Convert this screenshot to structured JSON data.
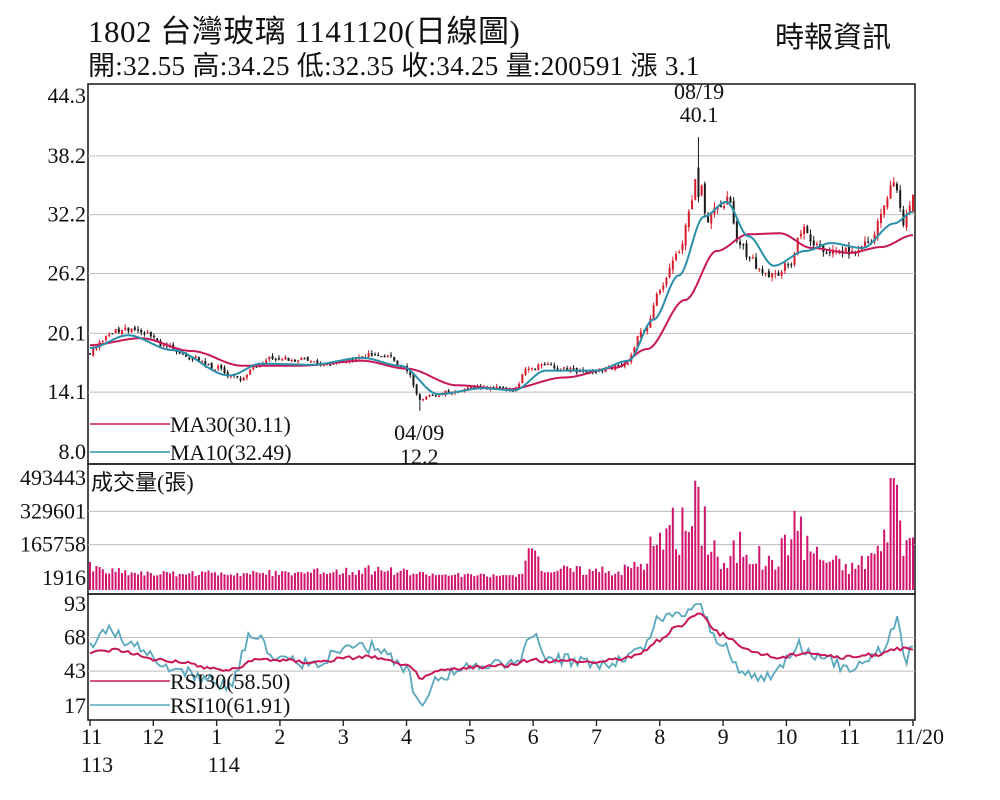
{
  "header": {
    "title": "1802  台灣玻璃 1141120(日線圖)",
    "source": "時報資訊",
    "quote": "開:32.55 高:34.25 低:32.35 收:34.25 量:200591 漲 3.1"
  },
  "colors": {
    "up": "#d81b2c",
    "down": "#1a1a1a",
    "ma30": "#c8185a",
    "ma10": "#2a8fa8",
    "volume": "#d1146e",
    "rsi30": "#c8185a",
    "rsi10": "#5aa8bd",
    "grid": "#bdbdbd"
  },
  "chart_data": [
    {
      "type": "candlestick",
      "panel": "price",
      "y_ticks": [
        "44.3",
        "38.2",
        "32.2",
        "26.2",
        "20.1",
        "14.1",
        "8.0"
      ],
      "ylim": [
        8.0,
        44.3
      ],
      "legend": [
        {
          "label": "MA30(30.11)",
          "series": "ma30"
        },
        {
          "label": "MA10(32.49)",
          "series": "ma10"
        }
      ],
      "annotations": [
        {
          "date": "08/19",
          "value": "40.1",
          "kind": "high"
        },
        {
          "date": "04/09",
          "value": "12.2",
          "kind": "low"
        }
      ],
      "last": {
        "open": 32.55,
        "high": 34.25,
        "low": 32.35,
        "close": 34.25
      },
      "anchors": [
        {
          "month": 11.0,
          "price": 18.2
        },
        {
          "month": 11.3,
          "price": 20.0
        },
        {
          "month": 11.5,
          "price": 20.5
        },
        {
          "month": 11.8,
          "price": 20.3
        },
        {
          "month": 12.2,
          "price": 18.8
        },
        {
          "month": 12.6,
          "price": 17.6
        },
        {
          "month": 13.0,
          "price": 16.6
        },
        {
          "month": 13.35,
          "price": 15.4
        },
        {
          "month": 13.6,
          "price": 16.6
        },
        {
          "month": 13.9,
          "price": 17.6
        },
        {
          "month": 14.3,
          "price": 17.4
        },
        {
          "month": 14.7,
          "price": 17.0
        },
        {
          "month": 15.0,
          "price": 17.3
        },
        {
          "month": 15.3,
          "price": 17.9
        },
        {
          "month": 15.7,
          "price": 17.7
        },
        {
          "month": 16.0,
          "price": 16.4
        },
        {
          "month": 16.2,
          "price": 13.4
        },
        {
          "month": 16.4,
          "price": 13.6
        },
        {
          "month": 16.7,
          "price": 14.2
        },
        {
          "month": 17.2,
          "price": 14.6
        },
        {
          "month": 17.7,
          "price": 14.3
        },
        {
          "month": 17.9,
          "price": 16.4
        },
        {
          "month": 18.2,
          "price": 16.8
        },
        {
          "month": 18.6,
          "price": 16.3
        },
        {
          "month": 19.0,
          "price": 16.2
        },
        {
          "month": 19.45,
          "price": 16.9
        },
        {
          "month": 19.75,
          "price": 20.5
        },
        {
          "month": 20.0,
          "price": 24.5
        },
        {
          "month": 20.3,
          "price": 28.5
        },
        {
          "month": 20.5,
          "price": 33.5
        },
        {
          "month": 20.6,
          "price": 37.8
        },
        {
          "month": 20.75,
          "price": 31.5
        },
        {
          "month": 20.95,
          "price": 33.4
        },
        {
          "month": 21.1,
          "price": 33.6
        },
        {
          "month": 21.2,
          "price": 30.0
        },
        {
          "month": 21.4,
          "price": 28.0
        },
        {
          "month": 21.6,
          "price": 26.5
        },
        {
          "month": 21.8,
          "price": 26.0
        },
        {
          "month": 22.05,
          "price": 27.2
        },
        {
          "month": 22.25,
          "price": 30.6
        },
        {
          "month": 22.5,
          "price": 28.9
        },
        {
          "month": 22.8,
          "price": 28.2
        },
        {
          "month": 23.05,
          "price": 28.6
        },
        {
          "month": 23.35,
          "price": 29.6
        },
        {
          "month": 23.55,
          "price": 33.0
        },
        {
          "month": 23.7,
          "price": 35.8
        },
        {
          "month": 23.85,
          "price": 31.5
        },
        {
          "month": 24.0,
          "price": 34.25
        }
      ],
      "ma10_anchors": [
        {
          "month": 11.0,
          "price": 18.6
        },
        {
          "month": 11.6,
          "price": 19.9
        },
        {
          "month": 12.3,
          "price": 18.4
        },
        {
          "month": 13.2,
          "price": 15.8
        },
        {
          "month": 13.7,
          "price": 17.0
        },
        {
          "month": 14.5,
          "price": 16.9
        },
        {
          "month": 15.3,
          "price": 17.6
        },
        {
          "month": 15.9,
          "price": 16.8
        },
        {
          "month": 16.5,
          "price": 13.9
        },
        {
          "month": 17.2,
          "price": 14.5
        },
        {
          "month": 17.7,
          "price": 14.3
        },
        {
          "month": 18.2,
          "price": 16.3
        },
        {
          "month": 19.0,
          "price": 16.3
        },
        {
          "month": 19.5,
          "price": 17.3
        },
        {
          "month": 19.9,
          "price": 21.5
        },
        {
          "month": 20.3,
          "price": 26.0
        },
        {
          "month": 20.7,
          "price": 32.0
        },
        {
          "month": 21.05,
          "price": 33.5
        },
        {
          "month": 21.4,
          "price": 30.0
        },
        {
          "month": 21.8,
          "price": 27.0
        },
        {
          "month": 22.3,
          "price": 28.5
        },
        {
          "month": 22.7,
          "price": 29.3
        },
        {
          "month": 23.2,
          "price": 28.8
        },
        {
          "month": 23.7,
          "price": 31.3
        },
        {
          "month": 24.0,
          "price": 32.49
        }
      ],
      "ma30_anchors": [
        {
          "month": 11.0,
          "price": 18.9
        },
        {
          "month": 11.8,
          "price": 19.6
        },
        {
          "month": 12.6,
          "price": 18.3
        },
        {
          "month": 13.4,
          "price": 16.8
        },
        {
          "month": 14.3,
          "price": 16.8
        },
        {
          "month": 15.3,
          "price": 17.3
        },
        {
          "month": 16.0,
          "price": 16.5
        },
        {
          "month": 16.8,
          "price": 14.8
        },
        {
          "month": 17.6,
          "price": 14.4
        },
        {
          "month": 18.5,
          "price": 15.6
        },
        {
          "month": 19.3,
          "price": 16.6
        },
        {
          "month": 19.8,
          "price": 18.5
        },
        {
          "month": 20.4,
          "price": 23.5
        },
        {
          "month": 20.9,
          "price": 28.5
        },
        {
          "month": 21.4,
          "price": 30.2
        },
        {
          "month": 21.9,
          "price": 30.3
        },
        {
          "month": 22.4,
          "price": 28.8
        },
        {
          "month": 23.0,
          "price": 28.3
        },
        {
          "month": 23.5,
          "price": 28.9
        },
        {
          "month": 24.0,
          "price": 30.11
        }
      ]
    },
    {
      "type": "bar",
      "panel": "volume",
      "y_ticks": [
        "493443",
        "329601",
        "165758",
        "1916"
      ],
      "ylim": [
        1916,
        493443
      ],
      "legend": [
        {
          "label": "成交量(張)"
        }
      ],
      "last_value": 200591,
      "anchors": [
        {
          "month": 11.0,
          "volume": 60000
        },
        {
          "month": 11.3,
          "volume": 40000
        },
        {
          "month": 12.0,
          "volume": 25000
        },
        {
          "month": 14.0,
          "volume": 30000
        },
        {
          "month": 15.5,
          "volume": 45000
        },
        {
          "month": 16.5,
          "volume": 20000
        },
        {
          "month": 17.8,
          "volume": 15000
        },
        {
          "month": 17.9,
          "volume": 110000
        },
        {
          "month": 18.3,
          "volume": 50000
        },
        {
          "month": 19.3,
          "volume": 40000
        },
        {
          "month": 19.7,
          "volume": 80000
        },
        {
          "month": 19.9,
          "volume": 180000
        },
        {
          "month": 20.3,
          "volume": 260000
        },
        {
          "month": 20.5,
          "volume": 320000
        },
        {
          "month": 20.6,
          "volume": 450000
        },
        {
          "month": 20.8,
          "volume": 240000
        },
        {
          "month": 21.0,
          "volume": 60000
        },
        {
          "month": 21.3,
          "volume": 200000
        },
        {
          "month": 21.7,
          "volume": 90000
        },
        {
          "month": 22.2,
          "volume": 240000
        },
        {
          "month": 22.6,
          "volume": 110000
        },
        {
          "month": 23.0,
          "volume": 60000
        },
        {
          "month": 23.5,
          "volume": 160000
        },
        {
          "month": 23.7,
          "volume": 480000
        },
        {
          "month": 23.85,
          "volume": 230000
        },
        {
          "month": 24.0,
          "volume": 200591
        }
      ]
    },
    {
      "type": "line",
      "panel": "rsi",
      "y_ticks": [
        "93",
        "68",
        "43",
        "17"
      ],
      "ylim": [
        17,
        93
      ],
      "legend": [
        {
          "label": "RSI30(58.50)",
          "series": "rsi30"
        },
        {
          "label": "RSI10(61.91)",
          "series": "rsi10"
        }
      ],
      "rsi30_anchors": [
        {
          "month": 11.0,
          "value": 57
        },
        {
          "month": 11.4,
          "value": 59
        },
        {
          "month": 12.0,
          "value": 52
        },
        {
          "month": 13.2,
          "value": 44
        },
        {
          "month": 13.7,
          "value": 52
        },
        {
          "month": 14.5,
          "value": 50
        },
        {
          "month": 15.4,
          "value": 54
        },
        {
          "month": 16.0,
          "value": 47
        },
        {
          "month": 16.25,
          "value": 38
        },
        {
          "month": 16.6,
          "value": 44
        },
        {
          "month": 17.5,
          "value": 47
        },
        {
          "month": 18.0,
          "value": 51
        },
        {
          "month": 19.0,
          "value": 50
        },
        {
          "month": 19.6,
          "value": 54
        },
        {
          "month": 20.0,
          "value": 66
        },
        {
          "month": 20.3,
          "value": 77
        },
        {
          "month": 20.6,
          "value": 86
        },
        {
          "month": 21.0,
          "value": 70
        },
        {
          "month": 21.4,
          "value": 58
        },
        {
          "month": 21.9,
          "value": 53
        },
        {
          "month": 22.3,
          "value": 57
        },
        {
          "month": 22.9,
          "value": 53
        },
        {
          "month": 23.4,
          "value": 55
        },
        {
          "month": 23.7,
          "value": 60
        },
        {
          "month": 24.0,
          "value": 58.5
        }
      ],
      "rsi10_anchors": [
        {
          "month": 11.0,
          "value": 60
        },
        {
          "month": 11.25,
          "value": 75
        },
        {
          "month": 11.7,
          "value": 62
        },
        {
          "month": 12.2,
          "value": 45
        },
        {
          "month": 13.2,
          "value": 33
        },
        {
          "month": 13.55,
          "value": 70
        },
        {
          "month": 14.0,
          "value": 52
        },
        {
          "month": 14.5,
          "value": 48
        },
        {
          "month": 15.0,
          "value": 58
        },
        {
          "month": 15.5,
          "value": 61
        },
        {
          "month": 16.0,
          "value": 44
        },
        {
          "month": 16.2,
          "value": 17
        },
        {
          "month": 16.5,
          "value": 40
        },
        {
          "month": 17.3,
          "value": 48
        },
        {
          "month": 17.8,
          "value": 50
        },
        {
          "month": 17.95,
          "value": 70
        },
        {
          "month": 18.3,
          "value": 52
        },
        {
          "month": 19.2,
          "value": 48
        },
        {
          "month": 19.7,
          "value": 58
        },
        {
          "month": 20.0,
          "value": 82
        },
        {
          "month": 20.3,
          "value": 85
        },
        {
          "month": 20.6,
          "value": 93
        },
        {
          "month": 20.9,
          "value": 68
        },
        {
          "month": 21.3,
          "value": 42
        },
        {
          "month": 21.7,
          "value": 38
        },
        {
          "month": 22.2,
          "value": 62
        },
        {
          "month": 22.5,
          "value": 52
        },
        {
          "month": 23.0,
          "value": 46
        },
        {
          "month": 23.5,
          "value": 58
        },
        {
          "month": 23.75,
          "value": 80
        },
        {
          "month": 23.9,
          "value": 52
        },
        {
          "month": 24.0,
          "value": 61.91
        }
      ]
    }
  ],
  "x_axis": {
    "ticks": [
      {
        "month": 11,
        "label": "11"
      },
      {
        "month": 12,
        "label": "12"
      },
      {
        "month": 13,
        "label": "1"
      },
      {
        "month": 14,
        "label": "2"
      },
      {
        "month": 15,
        "label": "3"
      },
      {
        "month": 16,
        "label": "4"
      },
      {
        "month": 17,
        "label": "5"
      },
      {
        "month": 18,
        "label": "6"
      },
      {
        "month": 19,
        "label": "7"
      },
      {
        "month": 20,
        "label": "8"
      },
      {
        "month": 21,
        "label": "9"
      },
      {
        "month": 22,
        "label": "10"
      },
      {
        "month": 23,
        "label": "11"
      },
      {
        "month": 24,
        "label": "11/20"
      }
    ],
    "years": [
      {
        "month": 11,
        "label": "113"
      },
      {
        "month": 13,
        "label": "114"
      }
    ]
  }
}
